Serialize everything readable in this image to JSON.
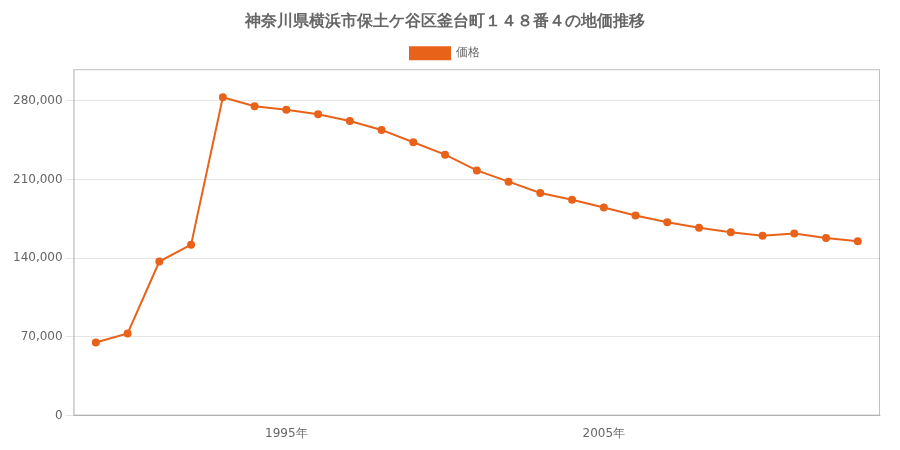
{
  "chart_data": {
    "type": "line",
    "title": "神奈川県横浜市保土ケ谷区釜台町１４８番４の地価推移",
    "x": [
      1989,
      1990,
      1991,
      1992,
      1993,
      1994,
      1995,
      1996,
      1997,
      1998,
      1999,
      2000,
      2001,
      2002,
      2003,
      2004,
      2005,
      2006,
      2007,
      2008,
      2009,
      2010,
      2011,
      2012,
      2013
    ],
    "series": [
      {
        "name": "価格",
        "color": "#E8621A",
        "marker": "circle",
        "values": [
          65000,
          73000,
          137000,
          152000,
          283000,
          275000,
          272000,
          268000,
          262000,
          254000,
          243000,
          232000,
          218000,
          208000,
          198000,
          192000,
          185000,
          178000,
          172000,
          167000,
          163000,
          160000,
          162000,
          158000,
          155000
        ]
      }
    ],
    "xlim": [
      1988.3,
      2013.7
    ],
    "xticks": [
      {
        "value": 1995,
        "label": "1995年"
      },
      {
        "value": 2005,
        "label": "2005年"
      }
    ],
    "ylim": [
      0,
      308000
    ],
    "yticks": [
      0,
      {
        "value": 70000,
        "label": "70,000"
      },
      {
        "value": 140000,
        "label": "140,000"
      },
      {
        "value": 210000,
        "label": "210,000"
      },
      {
        "value": 280000,
        "label": "280,000"
      }
    ],
    "grid": "y",
    "legend": "top"
  }
}
